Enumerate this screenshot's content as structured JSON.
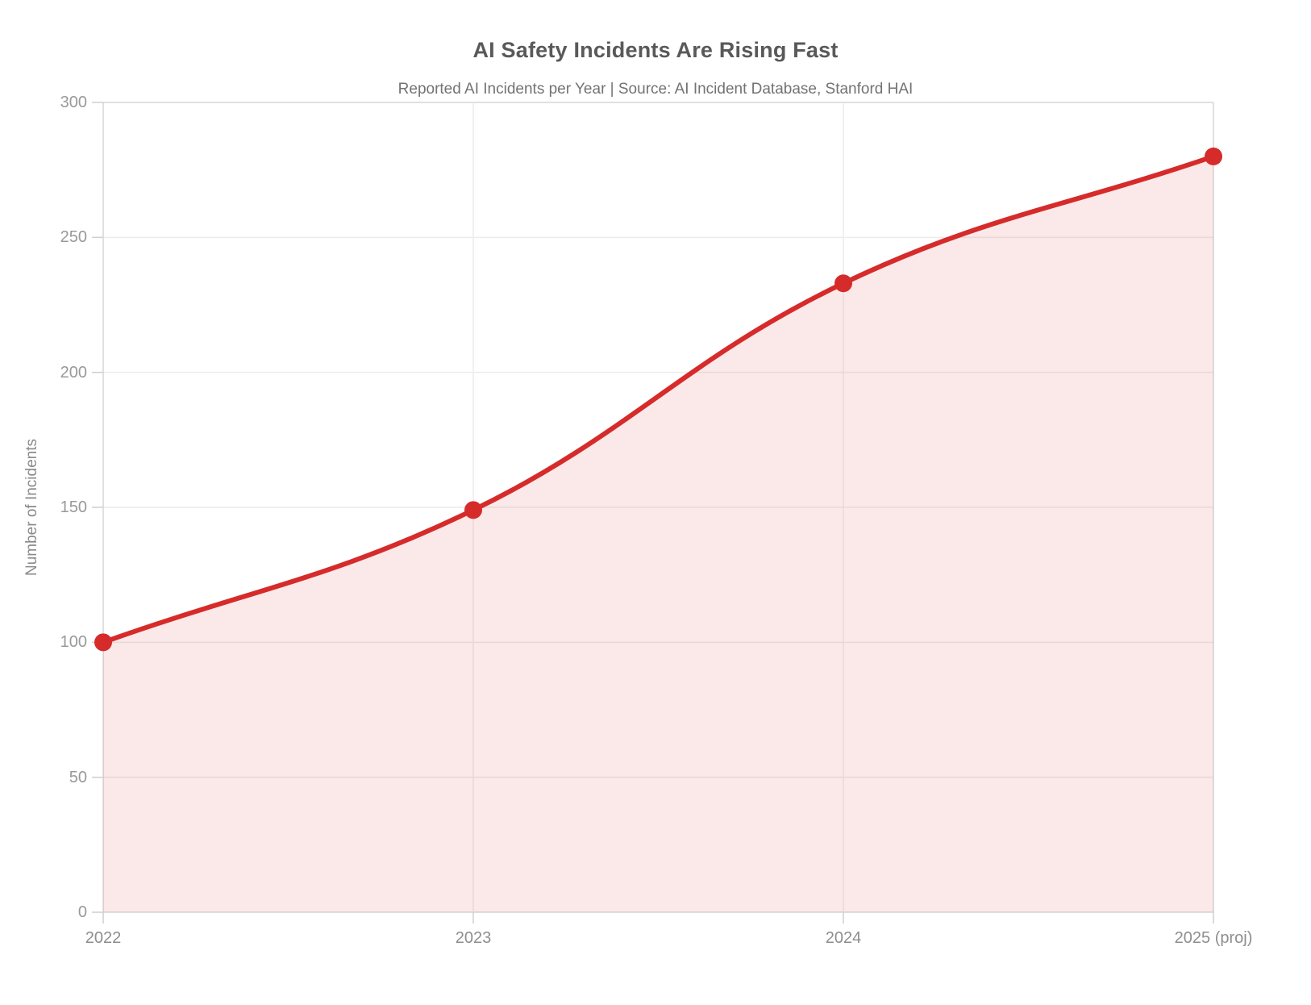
{
  "chart_data": {
    "type": "line",
    "title": "AI Safety Incidents Are Rising Fast",
    "subtitle": "Reported AI Incidents per Year | Source: AI Incident Database, Stanford HAI",
    "ylabel": "Number of Incidents",
    "xlabel": "",
    "categories": [
      "2022",
      "2023",
      "2024",
      "2025 (proj)"
    ],
    "values": [
      100,
      149,
      233,
      280
    ],
    "ylim": [
      0,
      300
    ],
    "yticks": [
      0,
      50,
      100,
      150,
      200,
      250,
      300
    ],
    "grid": true,
    "legend": "none",
    "smooth": true,
    "tension": 0.4,
    "colors": {
      "line": "#d62b2b",
      "point": "#d62b2b",
      "area_fill": "rgba(214, 43, 43, 0.10)",
      "gridline": "#ececec",
      "axis_border": "#d6d6d6",
      "tick_mark": "#cfcfcf",
      "tick_label": "#999999",
      "title": "#595959",
      "subtitle": "#737373"
    }
  }
}
